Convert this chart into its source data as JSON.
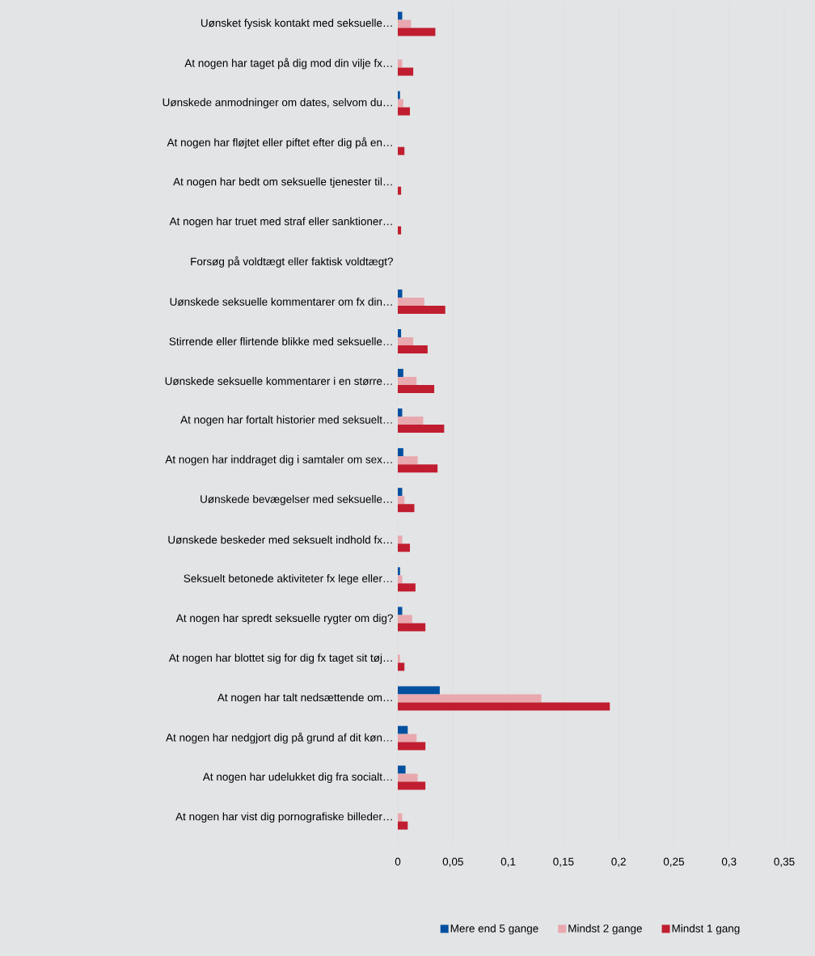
{
  "chart_data": {
    "type": "bar",
    "orientation": "horizontal",
    "categories": [
      "Uønsket fysisk kontakt med seksuelle…",
      "At nogen har taget på dig mod din vilje fx…",
      "Uønskede anmodninger om dates, selvom du…",
      "At nogen har fløjtet eller piftet efter dig på en…",
      "At nogen har bedt om seksuelle tjenester til…",
      "At nogen har truet med straf eller sanktioner…",
      "Forsøg på voldtægt eller faktisk voldtægt?",
      "Uønskede seksuelle kommentarer om fx din…",
      "Stirrende eller flirtende blikke med seksuelle…",
      "Uønskede seksuelle kommentarer i en større…",
      "At nogen har fortalt historier med seksuelt…",
      "At nogen har inddraget dig i samtaler om sex…",
      "Uønskede bevægelser med seksuelle…",
      "Uønskede beskeder med seksuelt indhold fx…",
      "Seksuelt betonede aktiviteter fx lege eller…",
      "At nogen har spredt seksuelle rygter om dig?",
      "At nogen har blottet sig for dig fx taget sit tøj…",
      "At nogen har talt nedsættende om…",
      "At nogen har nedgjort dig på grund af dit køn…",
      "At nogen har udelukket dig fra socialt…",
      "At nogen har vist dig pornografiske billeder…"
    ],
    "series": [
      {
        "name": "Mere end 5 gange",
        "color": "#0050a0",
        "values": [
          0.004,
          0,
          0.002,
          0,
          0,
          0,
          0,
          0.004,
          0.003,
          0.005,
          0.004,
          0.005,
          0.004,
          0,
          0.002,
          0.004,
          0,
          0.038,
          0.009,
          0.007,
          0
        ]
      },
      {
        "name": "Mindst 2 gange",
        "color": "#e8a8ae",
        "values": [
          0.012,
          0.004,
          0.005,
          0,
          0,
          0,
          0,
          0.024,
          0.014,
          0.017,
          0.023,
          0.018,
          0.006,
          0.004,
          0.004,
          0.013,
          0.002,
          0.13,
          0.017,
          0.018,
          0.004
        ]
      },
      {
        "name": "Mindst 1 gang",
        "color": "#c01e30",
        "values": [
          0.034,
          0.014,
          0.011,
          0.006,
          0.003,
          0.003,
          0,
          0.043,
          0.027,
          0.033,
          0.042,
          0.036,
          0.015,
          0.011,
          0.016,
          0.025,
          0.006,
          0.192,
          0.025,
          0.025,
          0.009
        ]
      }
    ],
    "xlim": [
      0,
      0.35
    ],
    "xticks": [
      {
        "value": 0,
        "label": "0"
      },
      {
        "value": 0.05,
        "label": "0,05"
      },
      {
        "value": 0.1,
        "label": "0,1"
      },
      {
        "value": 0.15,
        "label": "0,15"
      },
      {
        "value": 0.2,
        "label": "0,2"
      },
      {
        "value": 0.25,
        "label": "0,25"
      },
      {
        "value": 0.3,
        "label": "0,3"
      },
      {
        "value": 0.35,
        "label": "0,35"
      }
    ],
    "grid": "x",
    "legend": "bottom"
  }
}
